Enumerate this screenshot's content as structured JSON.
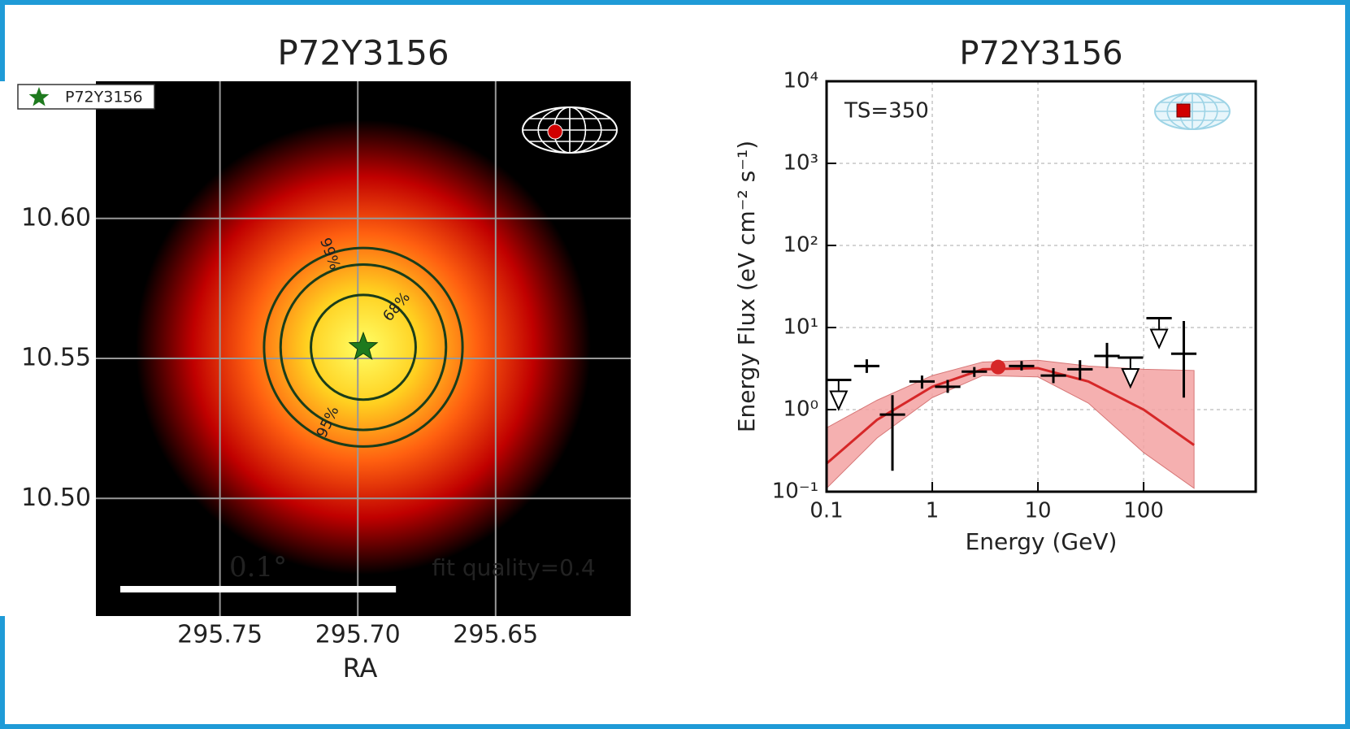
{
  "chart_data": [
    {
      "type": "skymap",
      "title": "P72Y3156",
      "xlabel": "RA",
      "xlim": [
        295.795,
        295.601
      ],
      "ylim": [
        10.458,
        10.649
      ],
      "xticks": [
        295.75,
        {
          "value": 295.7,
          "label": "295.70"
        },
        295.65
      ],
      "yticks": [
        {
          "value": 10.6,
          "label": "10.60"
        },
        10.55,
        {
          "value": 10.5,
          "label": "10.50"
        }
      ],
      "grid": true,
      "source": {
        "name": "P72Y3156",
        "x": 295.698,
        "y": 10.554,
        "color": "#1e7a1e"
      },
      "contours": [
        {
          "label": "68%",
          "radius": 0.019
        },
        {
          "label": "95%",
          "radius": 0.03
        },
        {
          "label": "99%",
          "radius": 0.036
        }
      ],
      "scale_bar": {
        "label": "0.1°",
        "length": 0.1
      },
      "annotation": "fit quality=0.4"
    },
    {
      "type": "sed",
      "title": "P72Y3156",
      "annotation": "TS=350",
      "xlabel": "Energy (GeV)",
      "ylabel": "Energy Flux (eV cm⁻² s⁻¹)",
      "xlog": true,
      "ylog": true,
      "grid": true,
      "xlim": [
        0.1,
        1150
      ],
      "ylim": [
        0.1,
        10000
      ],
      "xticks": [
        0.1,
        1,
        10,
        100
      ],
      "yticks": [
        {
          "value": 0.1,
          "label": "10⁻¹"
        },
        {
          "value": 1,
          "label": "10⁰"
        },
        {
          "value": 10,
          "label": "10¹"
        },
        {
          "value": 100,
          "label": "10²"
        },
        {
          "value": 1000,
          "label": "10³"
        },
        {
          "value": 10000,
          "label": "10⁴"
        }
      ],
      "model": {
        "color": "#d62728",
        "band_color": "#f4a3a3",
        "x": [
          0.1,
          0.3,
          1,
          3,
          10,
          30,
          100,
          300
        ],
        "values": [
          0.22,
          0.75,
          1.9,
          3.1,
          3.2,
          2.2,
          1.0,
          0.37
        ],
        "lower": [
          0.11,
          0.45,
          1.4,
          2.6,
          2.5,
          1.2,
          0.3,
          0.11
        ],
        "upper": [
          0.6,
          1.3,
          2.6,
          3.8,
          4.0,
          3.4,
          3.1,
          3.0
        ]
      },
      "pivot": {
        "x": 4.2,
        "value": 3.3,
        "color": "#d62728"
      },
      "flux_points": {
        "color": "#000",
        "x": [
          0.24,
          0.42,
          0.8,
          1.4,
          2.5,
          7,
          14,
          25,
          45,
          240
        ],
        "values": [
          3.4,
          0.87,
          2.2,
          1.9,
          2.9,
          3.4,
          2.6,
          3.1,
          4.5,
          4.8
        ],
        "low": [
          2.8,
          0.18,
          1.8,
          1.6,
          2.5,
          3.0,
          2.1,
          2.3,
          3.2,
          1.4
        ],
        "high": [
          4.1,
          1.5,
          2.6,
          2.3,
          3.3,
          3.9,
          3.2,
          4.0,
          6.5,
          12
        ]
      },
      "upper_limits": {
        "color": "#000",
        "x": [
          0.13,
          75,
          140
        ],
        "values": [
          2.3,
          4.3,
          13
        ]
      }
    }
  ]
}
